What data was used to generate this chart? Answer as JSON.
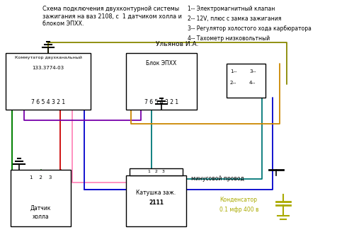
{
  "title": "Схема подключения двухконтурной системы\nзажигания на ваз 2108, с  1 датчиком холла и\nблоком ЭПХХ.",
  "author": "Ульянов И.А.",
  "bg_color": "#ffffff",
  "legend": [
    "1-- Электромагнитный клапан",
    "2-- 12V, плюс с замка зажигания",
    "3-- Регулятор холостого хода карбюратора",
    "4-- Тахометр низковольтный"
  ],
  "ground_text": "минусовой провод",
  "cap_text1": "Конденсатор",
  "cap_text2": "0.1 мфр 400 в",
  "wire_colors": {
    "green": "#008000",
    "red": "#cc0000",
    "pink": "#ff88bb",
    "blue": "#0000cc",
    "teal": "#007777",
    "orange": "#cc8800",
    "olive": "#888800",
    "black": "#000000",
    "purple": "#7700aa"
  }
}
